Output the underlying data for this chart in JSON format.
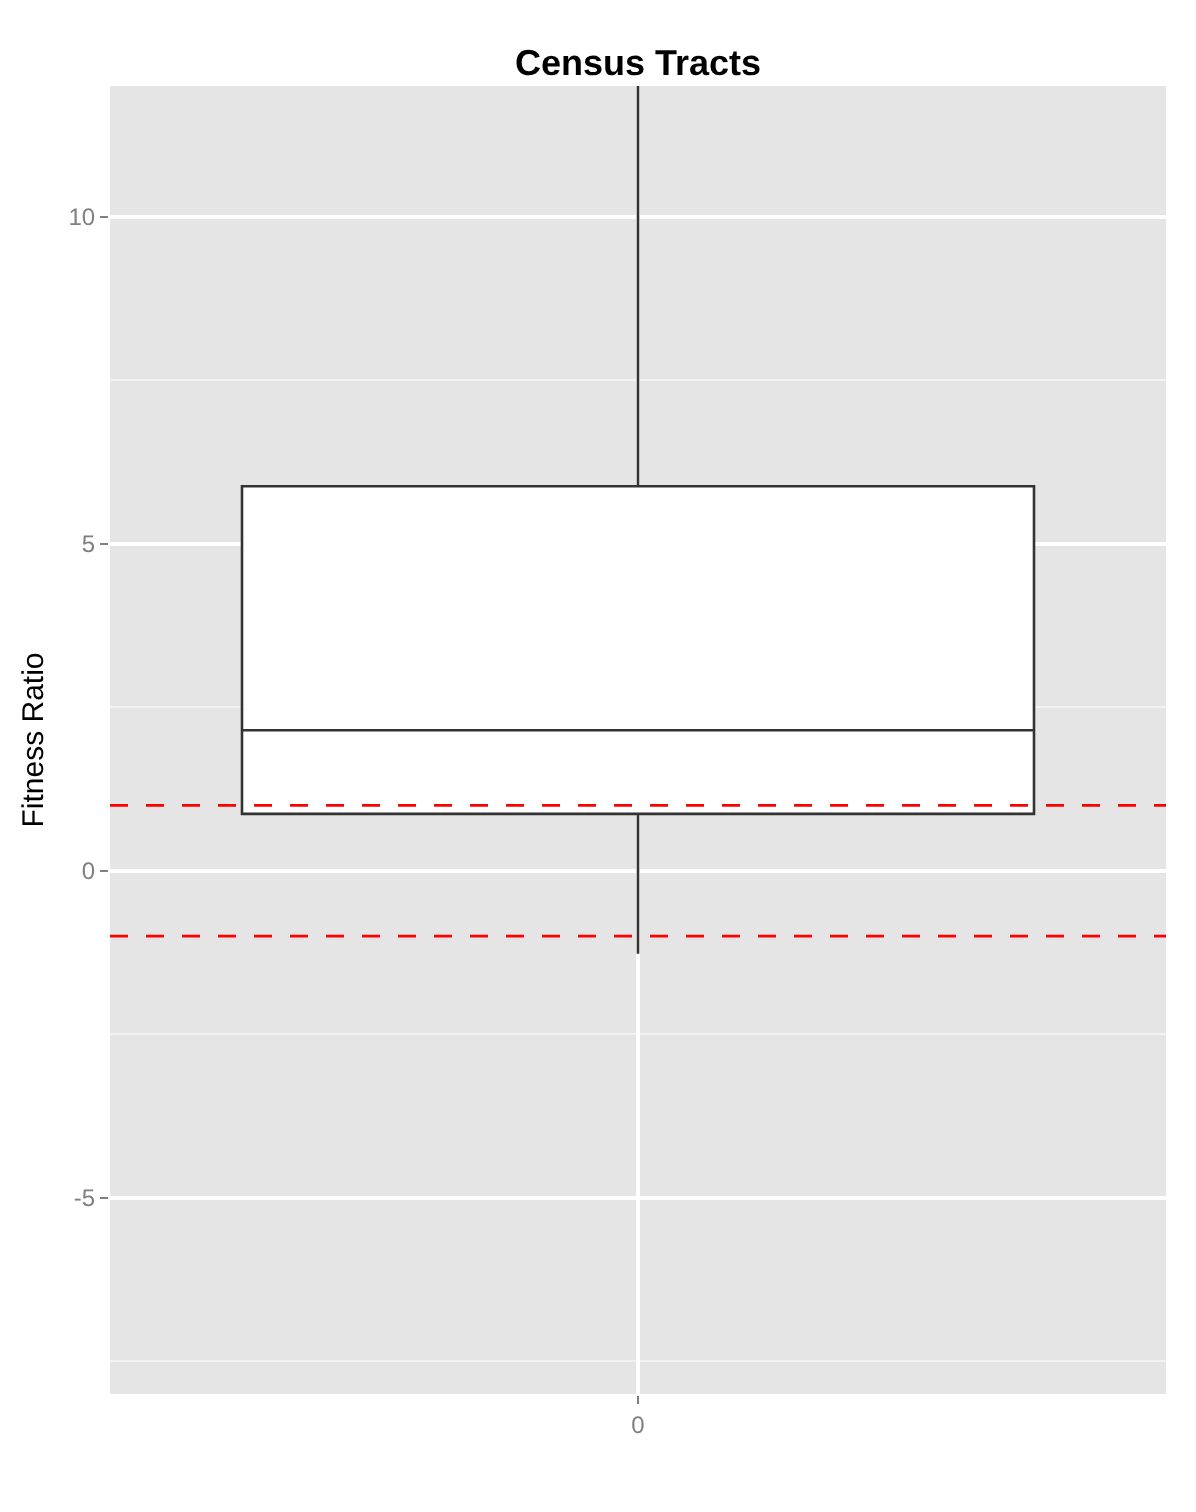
{
  "chart_data": {
    "type": "box",
    "title": "Census Tracts",
    "ylabel": "Fitness Ratio",
    "categories": [
      "0"
    ],
    "boxes": [
      {
        "low": -1.27,
        "q1": 0.87,
        "median": 2.15,
        "q3": 5.88,
        "high": 12
      }
    ],
    "ylim": [
      -8,
      12
    ],
    "yticks": [
      {
        "value": -7.5,
        "label": null
      },
      -5,
      {
        "value": -2.5,
        "label": null
      },
      0,
      {
        "value": 2.5,
        "label": null
      },
      5,
      {
        "value": 7.5,
        "label": null
      },
      10
    ],
    "grid": true,
    "ref_lines": [
      {
        "axis": "y",
        "value": 1,
        "color": "#ff0000",
        "line_style": "dashed"
      },
      {
        "axis": "y",
        "value": -1,
        "color": "#ff0000",
        "line_style": "dashed"
      }
    ]
  }
}
